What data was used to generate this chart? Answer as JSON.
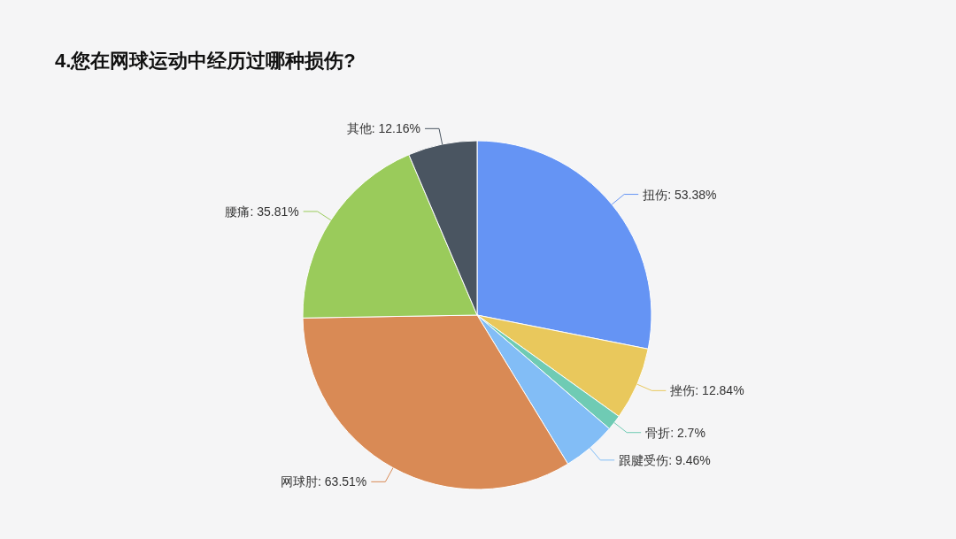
{
  "chart_data": {
    "type": "pie",
    "title": "4.您在网球运动中经历过哪种损伤?",
    "categories": [
      "扭伤",
      "挫伤",
      "骨折",
      "跟腱受伤",
      "网球肘",
      "腰痛",
      "其他"
    ],
    "values": [
      53.38,
      12.84,
      2.7,
      9.46,
      63.51,
      35.81,
      12.16
    ],
    "value_labels": [
      "53.38%",
      "12.84%",
      "2.7%",
      "9.46%",
      "63.51%",
      "35.81%",
      "12.16%"
    ],
    "colors": [
      "#6594f4",
      "#e9c85c",
      "#6fcbb4",
      "#82bdf6",
      "#d98a55",
      "#9acb5b",
      "#4a5561"
    ]
  }
}
